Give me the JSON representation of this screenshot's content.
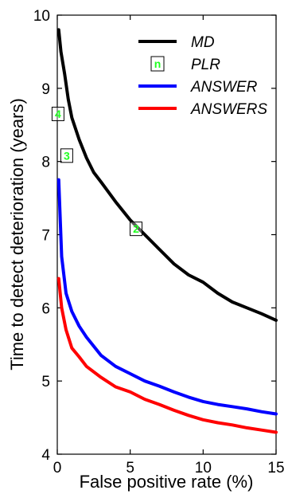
{
  "chart_data": {
    "type": "line",
    "xlabel": "False positive rate (%)",
    "ylabel": "Time to detect deterioration (years)",
    "xlim": [
      0,
      15
    ],
    "ylim": [
      4,
      10
    ],
    "xticks": [
      0,
      5,
      10,
      15
    ],
    "yticks": [
      4,
      5,
      6,
      7,
      8,
      9,
      10
    ],
    "grid": false,
    "legend_position": "top-right",
    "series": [
      {
        "name": "MD",
        "color": "#000000",
        "x": [
          0.1,
          0.25,
          0.5,
          0.75,
          1,
          1.5,
          2,
          2.5,
          3,
          4,
          5,
          6,
          7,
          8,
          9,
          10,
          11,
          12,
          13,
          14,
          15
        ],
        "y": [
          9.8,
          9.5,
          9.2,
          8.85,
          8.6,
          8.3,
          8.05,
          7.85,
          7.72,
          7.45,
          7.2,
          7.0,
          6.8,
          6.6,
          6.45,
          6.35,
          6.2,
          6.08,
          6.0,
          5.92,
          5.83
        ]
      },
      {
        "name": "ANSWER",
        "color": "#0000ff",
        "x": [
          0.1,
          0.3,
          0.6,
          1,
          1.5,
          2,
          3,
          4,
          5,
          6,
          7,
          8,
          9,
          10,
          11,
          12,
          13,
          14,
          15
        ],
        "y": [
          7.75,
          6.7,
          6.2,
          5.95,
          5.75,
          5.6,
          5.35,
          5.2,
          5.1,
          5.0,
          4.93,
          4.85,
          4.78,
          4.72,
          4.68,
          4.65,
          4.62,
          4.58,
          4.55
        ]
      },
      {
        "name": "ANSWERS",
        "color": "#ff0000",
        "x": [
          0.1,
          0.3,
          0.6,
          1,
          1.5,
          2,
          3,
          4,
          5,
          6,
          7,
          8,
          9,
          10,
          11,
          12,
          13,
          14,
          15
        ],
        "y": [
          6.4,
          6.0,
          5.7,
          5.45,
          5.33,
          5.2,
          5.05,
          4.92,
          4.85,
          4.75,
          4.68,
          4.6,
          4.53,
          4.47,
          4.43,
          4.4,
          4.36,
          4.33,
          4.3
        ]
      }
    ],
    "markers": {
      "name": "PLR",
      "legend_symbol": "n",
      "edge_color": "#000000",
      "label_color": "#22ff22",
      "points": [
        {
          "label": "4",
          "x": 0.05,
          "y": 8.65
        },
        {
          "label": "3",
          "x": 0.65,
          "y": 8.08
        },
        {
          "label": "2",
          "x": 5.4,
          "y": 7.08
        }
      ]
    }
  }
}
